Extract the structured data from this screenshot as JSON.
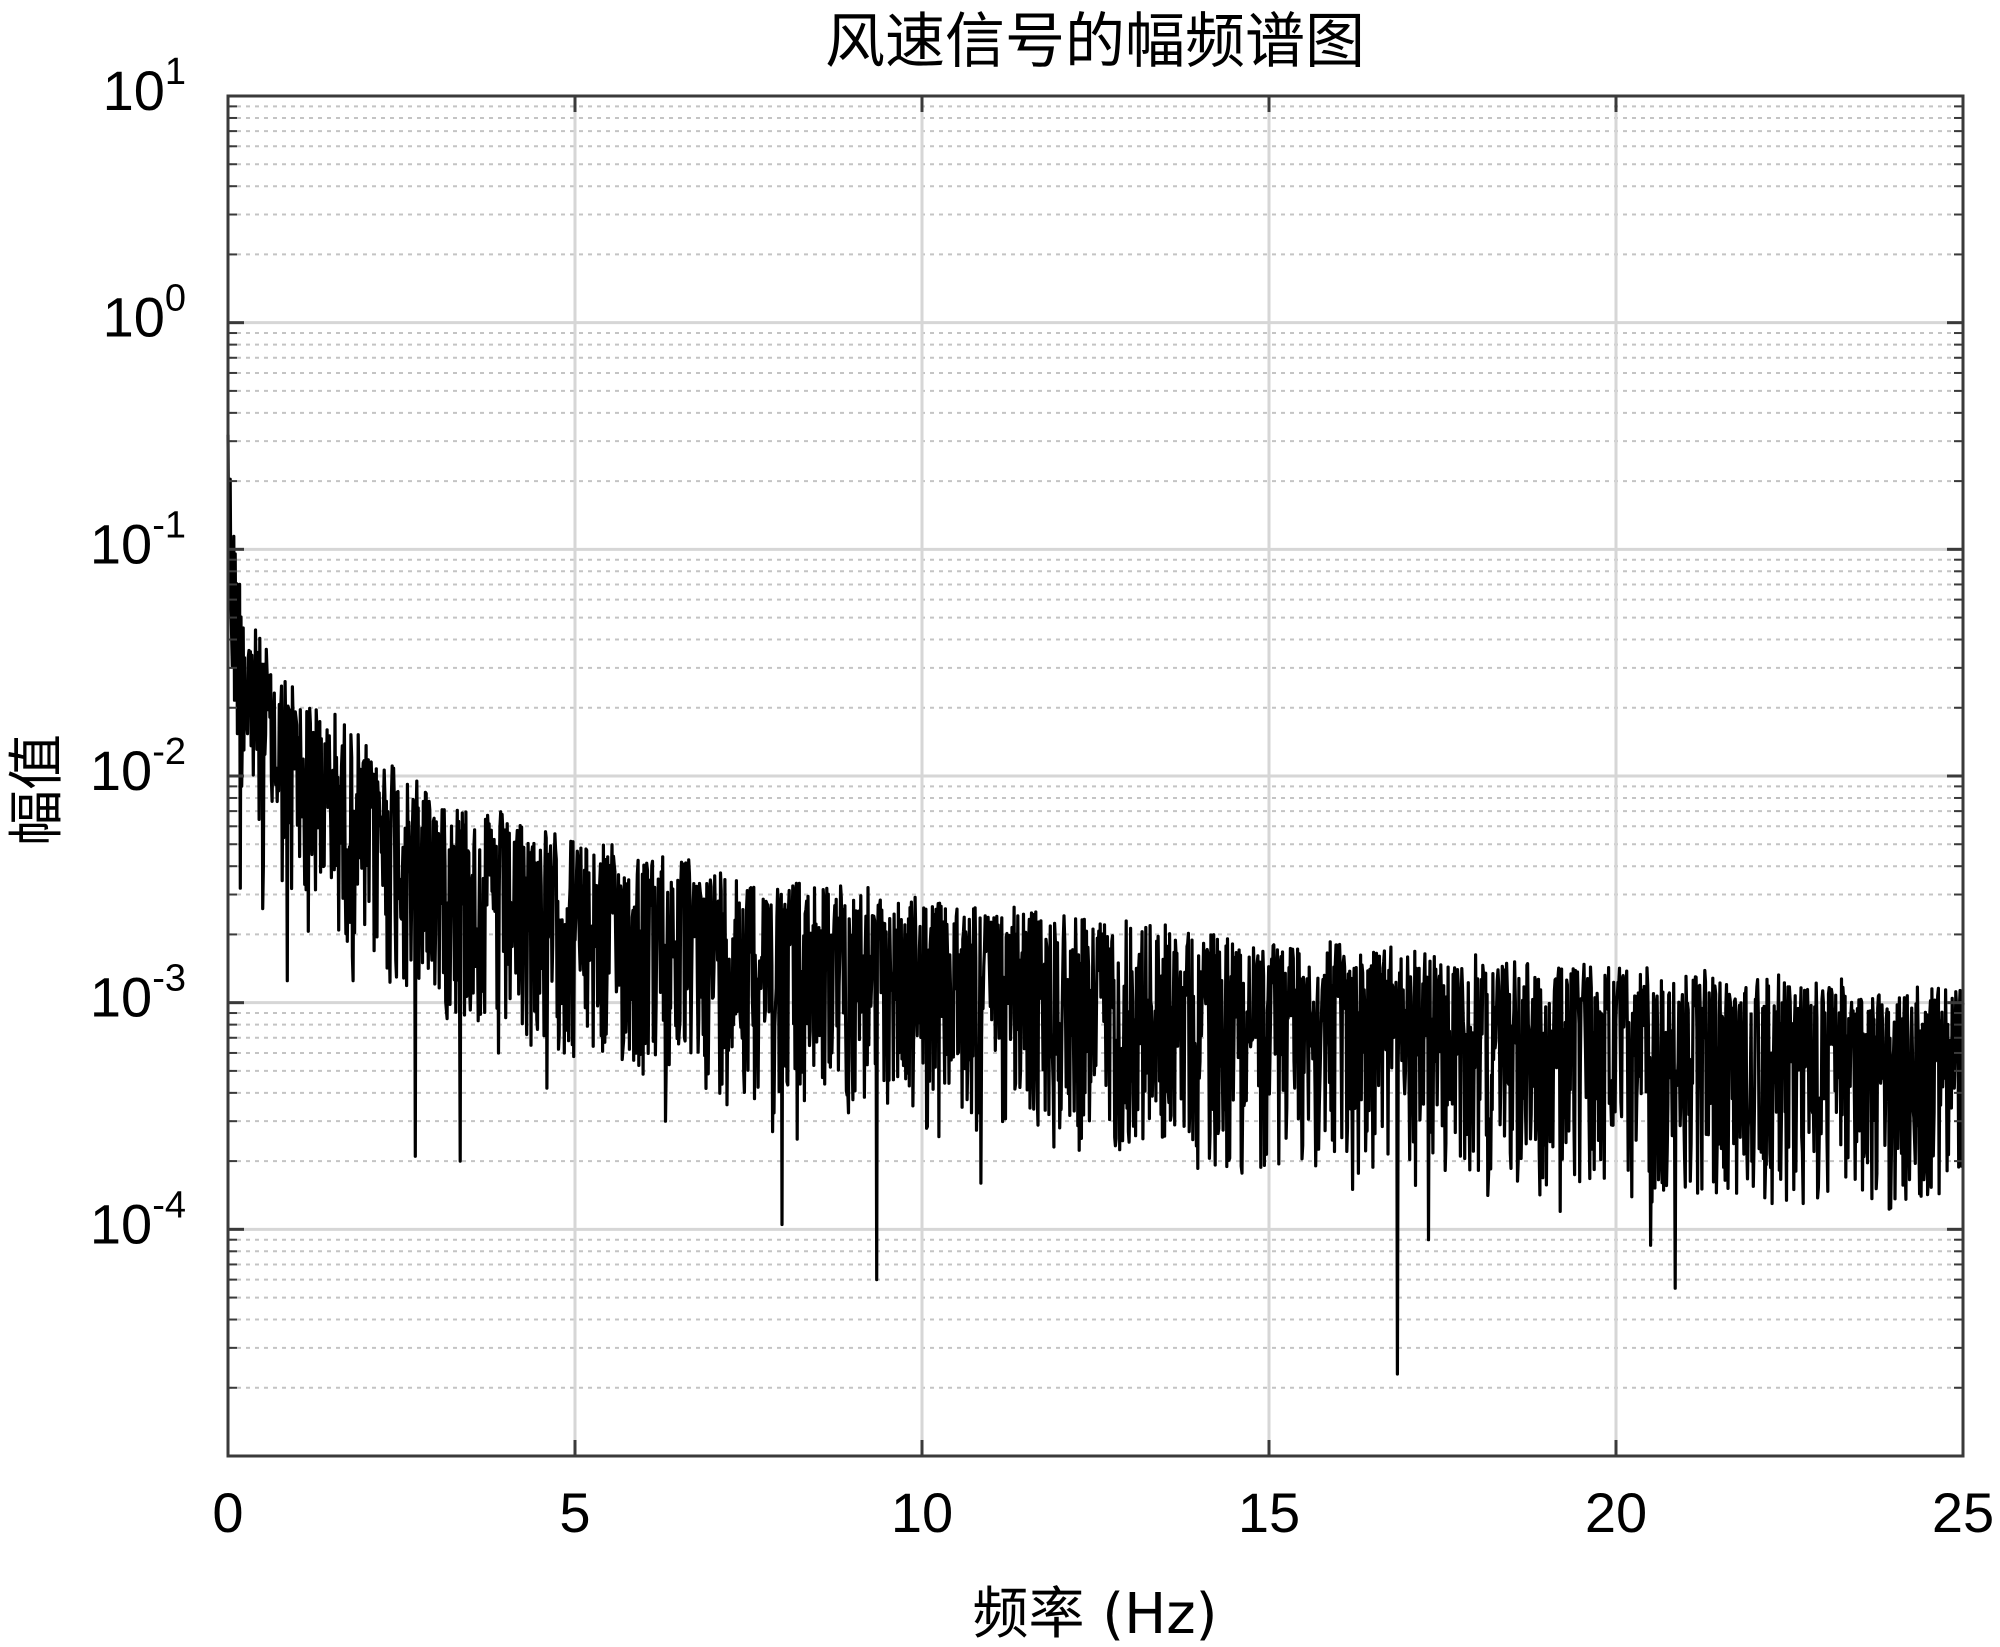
{
  "chart_data": {
    "type": "line",
    "title": "风速信号的幅频谱图",
    "xlabel": "频率 (Hz)",
    "ylabel": "幅值",
    "xlim": [
      0,
      25
    ],
    "ylim": [
      1e-05,
      10
    ],
    "yscale": "log",
    "grid": true,
    "minor_grid": true,
    "x_ticks": [
      0,
      5,
      10,
      15,
      20,
      25
    ],
    "y_ticks": [
      {
        "value": 10,
        "base": "10",
        "exp": "1"
      },
      {
        "value": 1,
        "base": "10",
        "exp": "0"
      },
      {
        "value": 0.1,
        "base": "10",
        "exp": "-1"
      },
      {
        "value": 0.01,
        "base": "10",
        "exp": "-2"
      },
      {
        "value": 0.001,
        "base": "10",
        "exp": "-3"
      },
      {
        "value": 0.0001,
        "base": "10",
        "exp": "-4"
      }
    ],
    "series": [
      {
        "color": "#000000",
        "envelope": [
          {
            "x": 0.0,
            "y": 0.32
          },
          {
            "x": 0.1,
            "y": 0.12
          },
          {
            "x": 0.3,
            "y": 0.06
          },
          {
            "x": 0.6,
            "y": 0.035
          },
          {
            "x": 1.0,
            "y": 0.025
          },
          {
            "x": 2.0,
            "y": 0.015
          },
          {
            "x": 3.0,
            "y": 0.009
          },
          {
            "x": 5.0,
            "y": 0.0055
          },
          {
            "x": 7.0,
            "y": 0.0042
          },
          {
            "x": 10.0,
            "y": 0.003
          },
          {
            "x": 12.0,
            "y": 0.0026
          },
          {
            "x": 15.0,
            "y": 0.002
          },
          {
            "x": 18.0,
            "y": 0.0017
          },
          {
            "x": 20.0,
            "y": 0.0015
          },
          {
            "x": 22.0,
            "y": 0.0014
          },
          {
            "x": 25.0,
            "y": 0.0012
          }
        ],
        "dips": [
          {
            "x": 0.18,
            "y": 0.0032
          },
          {
            "x": 0.5,
            "y": 0.0026
          },
          {
            "x": 0.85,
            "y": 0.00125
          },
          {
            "x": 1.8,
            "y": 0.00125
          },
          {
            "x": 2.7,
            "y": 0.00021
          },
          {
            "x": 3.35,
            "y": 0.0002
          },
          {
            "x": 3.9,
            "y": 0.0006
          },
          {
            "x": 4.6,
            "y": 0.00042
          },
          {
            "x": 6.3,
            "y": 0.0003
          },
          {
            "x": 7.85,
            "y": 0.00027
          },
          {
            "x": 7.98,
            "y": 0.000105
          },
          {
            "x": 8.2,
            "y": 0.00025
          },
          {
            "x": 9.35,
            "y": 6e-05
          },
          {
            "x": 10.85,
            "y": 0.00016
          },
          {
            "x": 14.6,
            "y": 0.00019
          },
          {
            "x": 16.2,
            "y": 0.00015
          },
          {
            "x": 16.85,
            "y": 2.3e-05
          },
          {
            "x": 17.3,
            "y": 9e-05
          },
          {
            "x": 19.2,
            "y": 0.00012
          },
          {
            "x": 20.5,
            "y": 8.5e-05
          },
          {
            "x": 20.85,
            "y": 5.5e-05
          },
          {
            "x": 22.7,
            "y": 0.00013
          },
          {
            "x": 24.4,
            "y": 0.00014
          }
        ]
      }
    ]
  }
}
